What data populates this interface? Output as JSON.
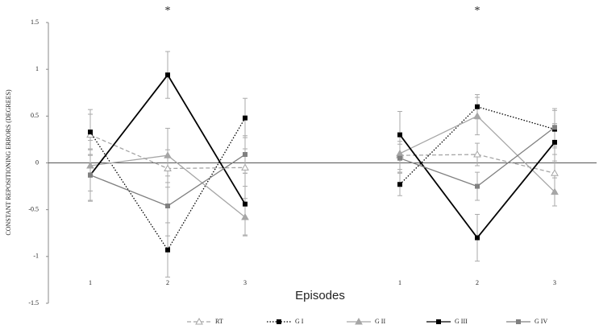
{
  "chart_data": {
    "type": "line",
    "ylabel": "CONSTANT REPOSITIONING ERRORS (DEGREES)",
    "xlabel": "Episodes",
    "categories": [
      "1",
      "2",
      "3",
      null,
      "1",
      "2",
      "3"
    ],
    "ylim": [
      -1.5,
      1.5
    ],
    "yticks": [
      1.5,
      1,
      0.5,
      0,
      -0.5,
      -1,
      -1.5
    ],
    "annotations": [
      {
        "text": "*",
        "x": 1
      },
      {
        "text": "*",
        "x": 5
      }
    ],
    "series": [
      {
        "name": "RT",
        "color": "#a6a6a6",
        "dash": "5,3",
        "marker": "triangle-open",
        "values": [
          0.3,
          -0.06,
          -0.05,
          null,
          0.08,
          0.09,
          -0.11
        ],
        "errors": [
          0.22,
          0.2,
          0.2,
          null,
          0.15,
          0.12,
          0.2
        ]
      },
      {
        "name": "G I",
        "color": "#000000",
        "dash": "1.5,2",
        "marker": "square",
        "values": [
          0.33,
          -0.93,
          0.48,
          null,
          -0.23,
          0.6,
          0.36
        ],
        "errors": [
          0.24,
          0.29,
          0.21,
          null,
          0.12,
          0.13,
          0.2
        ]
      },
      {
        "name": "G II",
        "color": "#a6a6a6",
        "dash": "none",
        "marker": "triangle",
        "values": [
          -0.03,
          0.08,
          -0.58,
          null,
          0.1,
          0.5,
          -0.31
        ],
        "errors": [
          0.27,
          0.29,
          0.2,
          null,
          0.2,
          0.2,
          0.15
        ]
      },
      {
        "name": "G III",
        "color": "#000000",
        "dash": "none",
        "marker": "square",
        "values": [
          -0.13,
          0.94,
          -0.44,
          null,
          0.3,
          -0.8,
          0.22
        ],
        "errors": [
          0.28,
          0.25,
          0.33,
          null,
          0.25,
          0.25,
          0.2
        ]
      },
      {
        "name": "G IV",
        "color": "#808080",
        "dash": "none",
        "marker": "square",
        "values": [
          -0.13,
          -0.46,
          0.09,
          null,
          0.05,
          -0.25,
          0.38
        ],
        "errors": [
          0.27,
          0.32,
          0.2,
          null,
          0.15,
          0.15,
          0.2
        ]
      }
    ]
  }
}
